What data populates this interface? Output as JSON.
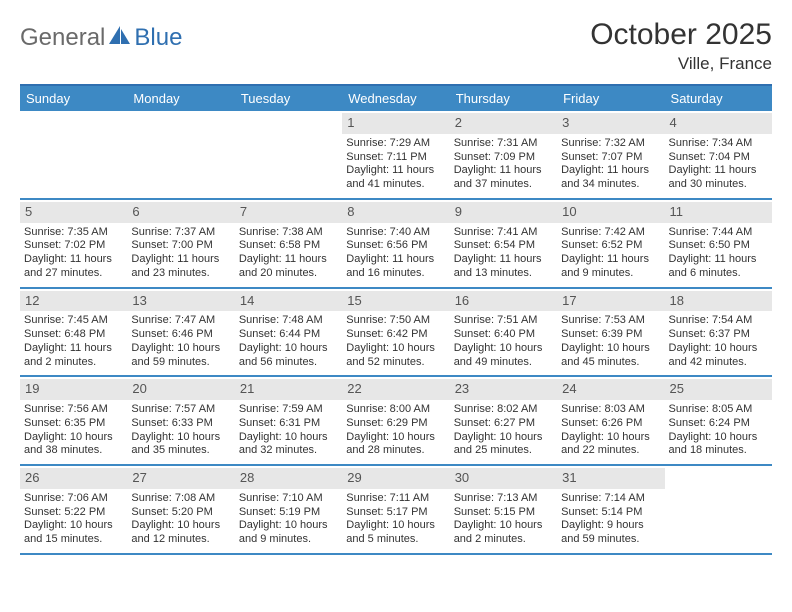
{
  "brand": {
    "part1": "General",
    "part2": "Blue"
  },
  "title": "October 2025",
  "subtitle": "Ville, France",
  "colors": {
    "header_bar": "#3d89c4",
    "border": "#2f6fb0",
    "daynum_bg": "#e7e7e7",
    "logo_gray": "#6a6a6a",
    "logo_blue": "#2f6fb0",
    "text": "#333333",
    "background": "#ffffff"
  },
  "type": "calendar-table",
  "day_headers": [
    "Sunday",
    "Monday",
    "Tuesday",
    "Wednesday",
    "Thursday",
    "Friday",
    "Saturday"
  ],
  "weeks": [
    [
      {
        "day": "",
        "sunrise": "",
        "sunset": "",
        "daylight": ""
      },
      {
        "day": "",
        "sunrise": "",
        "sunset": "",
        "daylight": ""
      },
      {
        "day": "",
        "sunrise": "",
        "sunset": "",
        "daylight": ""
      },
      {
        "day": "1",
        "sunrise": "Sunrise: 7:29 AM",
        "sunset": "Sunset: 7:11 PM",
        "daylight": "Daylight: 11 hours and 41 minutes."
      },
      {
        "day": "2",
        "sunrise": "Sunrise: 7:31 AM",
        "sunset": "Sunset: 7:09 PM",
        "daylight": "Daylight: 11 hours and 37 minutes."
      },
      {
        "day": "3",
        "sunrise": "Sunrise: 7:32 AM",
        "sunset": "Sunset: 7:07 PM",
        "daylight": "Daylight: 11 hours and 34 minutes."
      },
      {
        "day": "4",
        "sunrise": "Sunrise: 7:34 AM",
        "sunset": "Sunset: 7:04 PM",
        "daylight": "Daylight: 11 hours and 30 minutes."
      }
    ],
    [
      {
        "day": "5",
        "sunrise": "Sunrise: 7:35 AM",
        "sunset": "Sunset: 7:02 PM",
        "daylight": "Daylight: 11 hours and 27 minutes."
      },
      {
        "day": "6",
        "sunrise": "Sunrise: 7:37 AM",
        "sunset": "Sunset: 7:00 PM",
        "daylight": "Daylight: 11 hours and 23 minutes."
      },
      {
        "day": "7",
        "sunrise": "Sunrise: 7:38 AM",
        "sunset": "Sunset: 6:58 PM",
        "daylight": "Daylight: 11 hours and 20 minutes."
      },
      {
        "day": "8",
        "sunrise": "Sunrise: 7:40 AM",
        "sunset": "Sunset: 6:56 PM",
        "daylight": "Daylight: 11 hours and 16 minutes."
      },
      {
        "day": "9",
        "sunrise": "Sunrise: 7:41 AM",
        "sunset": "Sunset: 6:54 PM",
        "daylight": "Daylight: 11 hours and 13 minutes."
      },
      {
        "day": "10",
        "sunrise": "Sunrise: 7:42 AM",
        "sunset": "Sunset: 6:52 PM",
        "daylight": "Daylight: 11 hours and 9 minutes."
      },
      {
        "day": "11",
        "sunrise": "Sunrise: 7:44 AM",
        "sunset": "Sunset: 6:50 PM",
        "daylight": "Daylight: 11 hours and 6 minutes."
      }
    ],
    [
      {
        "day": "12",
        "sunrise": "Sunrise: 7:45 AM",
        "sunset": "Sunset: 6:48 PM",
        "daylight": "Daylight: 11 hours and 2 minutes."
      },
      {
        "day": "13",
        "sunrise": "Sunrise: 7:47 AM",
        "sunset": "Sunset: 6:46 PM",
        "daylight": "Daylight: 10 hours and 59 minutes."
      },
      {
        "day": "14",
        "sunrise": "Sunrise: 7:48 AM",
        "sunset": "Sunset: 6:44 PM",
        "daylight": "Daylight: 10 hours and 56 minutes."
      },
      {
        "day": "15",
        "sunrise": "Sunrise: 7:50 AM",
        "sunset": "Sunset: 6:42 PM",
        "daylight": "Daylight: 10 hours and 52 minutes."
      },
      {
        "day": "16",
        "sunrise": "Sunrise: 7:51 AM",
        "sunset": "Sunset: 6:40 PM",
        "daylight": "Daylight: 10 hours and 49 minutes."
      },
      {
        "day": "17",
        "sunrise": "Sunrise: 7:53 AM",
        "sunset": "Sunset: 6:39 PM",
        "daylight": "Daylight: 10 hours and 45 minutes."
      },
      {
        "day": "18",
        "sunrise": "Sunrise: 7:54 AM",
        "sunset": "Sunset: 6:37 PM",
        "daylight": "Daylight: 10 hours and 42 minutes."
      }
    ],
    [
      {
        "day": "19",
        "sunrise": "Sunrise: 7:56 AM",
        "sunset": "Sunset: 6:35 PM",
        "daylight": "Daylight: 10 hours and 38 minutes."
      },
      {
        "day": "20",
        "sunrise": "Sunrise: 7:57 AM",
        "sunset": "Sunset: 6:33 PM",
        "daylight": "Daylight: 10 hours and 35 minutes."
      },
      {
        "day": "21",
        "sunrise": "Sunrise: 7:59 AM",
        "sunset": "Sunset: 6:31 PM",
        "daylight": "Daylight: 10 hours and 32 minutes."
      },
      {
        "day": "22",
        "sunrise": "Sunrise: 8:00 AM",
        "sunset": "Sunset: 6:29 PM",
        "daylight": "Daylight: 10 hours and 28 minutes."
      },
      {
        "day": "23",
        "sunrise": "Sunrise: 8:02 AM",
        "sunset": "Sunset: 6:27 PM",
        "daylight": "Daylight: 10 hours and 25 minutes."
      },
      {
        "day": "24",
        "sunrise": "Sunrise: 8:03 AM",
        "sunset": "Sunset: 6:26 PM",
        "daylight": "Daylight: 10 hours and 22 minutes."
      },
      {
        "day": "25",
        "sunrise": "Sunrise: 8:05 AM",
        "sunset": "Sunset: 6:24 PM",
        "daylight": "Daylight: 10 hours and 18 minutes."
      }
    ],
    [
      {
        "day": "26",
        "sunrise": "Sunrise: 7:06 AM",
        "sunset": "Sunset: 5:22 PM",
        "daylight": "Daylight: 10 hours and 15 minutes."
      },
      {
        "day": "27",
        "sunrise": "Sunrise: 7:08 AM",
        "sunset": "Sunset: 5:20 PM",
        "daylight": "Daylight: 10 hours and 12 minutes."
      },
      {
        "day": "28",
        "sunrise": "Sunrise: 7:10 AM",
        "sunset": "Sunset: 5:19 PM",
        "daylight": "Daylight: 10 hours and 9 minutes."
      },
      {
        "day": "29",
        "sunrise": "Sunrise: 7:11 AM",
        "sunset": "Sunset: 5:17 PM",
        "daylight": "Daylight: 10 hours and 5 minutes."
      },
      {
        "day": "30",
        "sunrise": "Sunrise: 7:13 AM",
        "sunset": "Sunset: 5:15 PM",
        "daylight": "Daylight: 10 hours and 2 minutes."
      },
      {
        "day": "31",
        "sunrise": "Sunrise: 7:14 AM",
        "sunset": "Sunset: 5:14 PM",
        "daylight": "Daylight: 9 hours and 59 minutes."
      },
      {
        "day": "",
        "sunrise": "",
        "sunset": "",
        "daylight": ""
      }
    ]
  ]
}
